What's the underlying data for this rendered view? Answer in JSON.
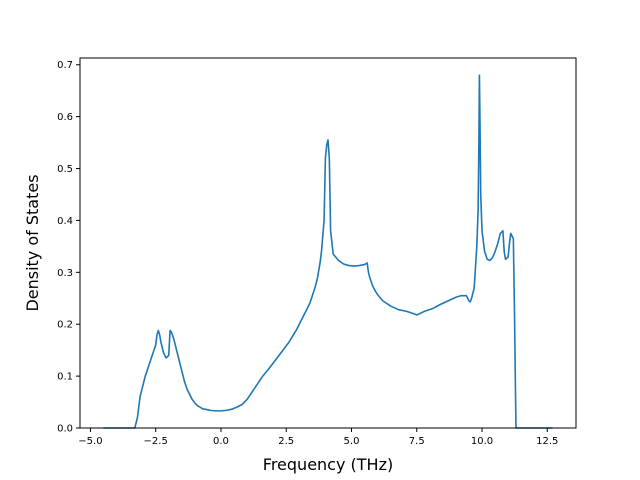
{
  "chart_data": {
    "type": "line",
    "title": "",
    "xlabel": "Frequency (THz)",
    "ylabel": "Density of States",
    "xlim": [
      -5.4,
      13.6
    ],
    "ylim": [
      0,
      0.713
    ],
    "grid": false,
    "legend": "none",
    "xticks": [
      -5.0,
      -2.5,
      0.0,
      2.5,
      5.0,
      7.5,
      10.0,
      12.5
    ],
    "xtick_labels": [
      "−5.0",
      "−2.5",
      "0.0",
      "2.5",
      "5.0",
      "7.5",
      "10.0",
      "12.5"
    ],
    "yticks": [
      0.0,
      0.1,
      0.2,
      0.3,
      0.4,
      0.5,
      0.6,
      0.7
    ],
    "ytick_labels": [
      "0.0",
      "0.1",
      "0.2",
      "0.3",
      "0.4",
      "0.5",
      "0.6",
      "0.7"
    ],
    "series": [
      {
        "color": "#1f77b4",
        "x": [
          -4.5,
          -3.3,
          -3.2,
          -3.1,
          -3.0,
          -2.9,
          -2.8,
          -2.7,
          -2.6,
          -2.5,
          -2.45,
          -2.4,
          -2.35,
          -2.3,
          -2.2,
          -2.1,
          -2.0,
          -1.95,
          -1.9,
          -1.85,
          -1.8,
          -1.7,
          -1.6,
          -1.5,
          -1.4,
          -1.3,
          -1.2,
          -1.1,
          -1.0,
          -0.9,
          -0.8,
          -0.7,
          -0.6,
          -0.5,
          -0.4,
          -0.2,
          0.0,
          0.2,
          0.4,
          0.6,
          0.8,
          1.0,
          1.2,
          1.4,
          1.6,
          1.8,
          2.0,
          2.3,
          2.6,
          2.9,
          3.2,
          3.4,
          3.6,
          3.7,
          3.8,
          3.85,
          3.9,
          3.95,
          4.0,
          4.05,
          4.1,
          4.15,
          4.2,
          4.3,
          4.5,
          4.7,
          4.9,
          5.1,
          5.3,
          5.5,
          5.6,
          5.65,
          5.7,
          5.8,
          5.9,
          6.0,
          6.2,
          6.5,
          6.8,
          7.1,
          7.4,
          7.5,
          7.6,
          7.8,
          8.1,
          8.4,
          8.7,
          9.0,
          9.2,
          9.4,
          9.5,
          9.55,
          9.6,
          9.7,
          9.8,
          9.85,
          9.88,
          9.9,
          9.92,
          9.95,
          10.0,
          10.1,
          10.2,
          10.3,
          10.4,
          10.5,
          10.6,
          10.7,
          10.8,
          10.85,
          10.9,
          11.0,
          11.05,
          11.1,
          11.15,
          11.2,
          11.25,
          11.3,
          11.35,
          11.5,
          12.0,
          12.5,
          12.6,
          12.7
        ],
        "y": [
          0.0,
          0.0,
          0.02,
          0.06,
          0.08,
          0.1,
          0.115,
          0.13,
          0.145,
          0.16,
          0.18,
          0.188,
          0.18,
          0.165,
          0.145,
          0.135,
          0.14,
          0.188,
          0.185,
          0.178,
          0.17,
          0.15,
          0.13,
          0.11,
          0.09,
          0.075,
          0.065,
          0.055,
          0.048,
          0.043,
          0.04,
          0.037,
          0.036,
          0.035,
          0.034,
          0.033,
          0.033,
          0.034,
          0.036,
          0.04,
          0.045,
          0.055,
          0.07,
          0.085,
          0.1,
          0.112,
          0.125,
          0.145,
          0.165,
          0.19,
          0.22,
          0.24,
          0.27,
          0.29,
          0.32,
          0.34,
          0.37,
          0.4,
          0.52,
          0.545,
          0.555,
          0.52,
          0.38,
          0.335,
          0.323,
          0.316,
          0.313,
          0.312,
          0.313,
          0.315,
          0.318,
          0.3,
          0.29,
          0.275,
          0.265,
          0.257,
          0.245,
          0.235,
          0.228,
          0.225,
          0.22,
          0.218,
          0.22,
          0.225,
          0.23,
          0.238,
          0.245,
          0.252,
          0.255,
          0.255,
          0.245,
          0.243,
          0.25,
          0.27,
          0.35,
          0.42,
          0.55,
          0.68,
          0.6,
          0.45,
          0.38,
          0.34,
          0.325,
          0.323,
          0.328,
          0.34,
          0.355,
          0.375,
          0.38,
          0.34,
          0.325,
          0.33,
          0.355,
          0.375,
          0.37,
          0.365,
          0.2,
          0.0,
          0.0,
          0.0,
          0.0,
          0.0,
          0.0,
          0.0
        ]
      }
    ]
  }
}
